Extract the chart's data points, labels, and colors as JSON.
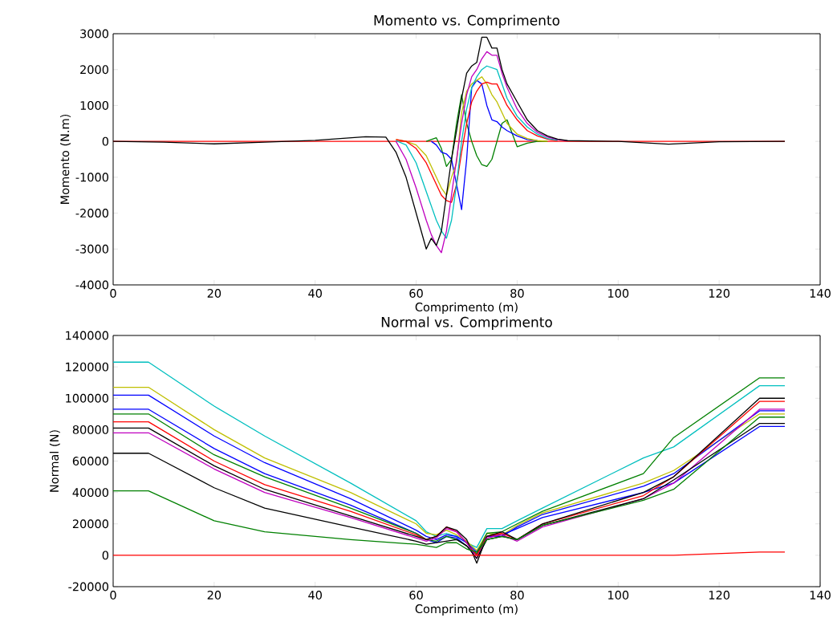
{
  "chart_data": [
    {
      "type": "line",
      "title": "Momento vs. Comprimento",
      "xlabel": "Comprimento (m)",
      "ylabel": "Momento (N.m)",
      "xlim": [
        0,
        140
      ],
      "ylim": [
        -4000,
        3000
      ],
      "xticks": [
        0,
        20,
        40,
        60,
        80,
        100,
        120,
        140
      ],
      "yticks": [
        -4000,
        -3000,
        -2000,
        -1000,
        0,
        1000,
        2000,
        3000
      ],
      "x": [
        0,
        10,
        20,
        30,
        40,
        50,
        54,
        56,
        58,
        60,
        62,
        63,
        64,
        65,
        66,
        67,
        68,
        69,
        70,
        71,
        72,
        73,
        74,
        75,
        76,
        77,
        78,
        80,
        82,
        84,
        86,
        88,
        90,
        100,
        110,
        120,
        133
      ],
      "series": [
        {
          "color": "#ff0000",
          "values": [
            0,
            0,
            0,
            0,
            0,
            0,
            0,
            0,
            0,
            0,
            0,
            0,
            0,
            0,
            0,
            0,
            0,
            0,
            0,
            0,
            0,
            0,
            0,
            0,
            0,
            0,
            0,
            0,
            0,
            0,
            0,
            0,
            0,
            0,
            0,
            0,
            0
          ]
        },
        {
          "color": "#008000",
          "values": [
            null,
            null,
            null,
            null,
            null,
            null,
            null,
            null,
            null,
            null,
            0,
            50,
            100,
            -200,
            -700,
            -500,
            500,
            1300,
            500,
            0,
            -400,
            -650,
            -700,
            -500,
            0,
            500,
            600,
            -150,
            -50,
            0,
            0,
            null,
            null,
            null,
            null,
            null,
            null
          ]
        },
        {
          "color": "#0000ff",
          "values": [
            null,
            null,
            null,
            null,
            null,
            null,
            null,
            null,
            null,
            null,
            null,
            0,
            -100,
            -300,
            -350,
            -500,
            -1200,
            -1900,
            -500,
            1500,
            1700,
            1600,
            1000,
            600,
            550,
            400,
            300,
            150,
            50,
            20,
            null,
            null,
            null,
            null,
            null,
            null,
            null
          ]
        },
        {
          "color": "#bfbf00",
          "values": [
            null,
            null,
            null,
            null,
            null,
            null,
            null,
            50,
            0,
            -100,
            -400,
            -700,
            -1000,
            -1300,
            -1500,
            -1000,
            -600,
            800,
            1400,
            1600,
            1700,
            1800,
            1600,
            1300,
            1100,
            800,
            500,
            200,
            80,
            20,
            0,
            null,
            null,
            null,
            null,
            null,
            null
          ]
        },
        {
          "color": "#ff0000",
          "values": [
            null,
            null,
            null,
            null,
            null,
            null,
            null,
            50,
            0,
            -200,
            -600,
            -900,
            -1200,
            -1500,
            -1650,
            -1700,
            -1200,
            -300,
            500,
            1100,
            1400,
            1600,
            1650,
            1600,
            1600,
            1300,
            1000,
            600,
            300,
            150,
            60,
            20,
            null,
            null,
            null,
            null,
            null
          ]
        },
        {
          "color": "#00bfbf",
          "values": [
            null,
            null,
            null,
            null,
            null,
            null,
            null,
            20,
            -100,
            -600,
            -1400,
            -1800,
            -2200,
            -2500,
            -2700,
            -2200,
            -1200,
            0,
            900,
            1500,
            1800,
            2000,
            2100,
            2050,
            2000,
            1600,
            1200,
            700,
            400,
            200,
            80,
            30,
            null,
            null,
            null,
            null,
            null
          ]
        },
        {
          "color": "#bf00bf",
          "values": [
            null,
            null,
            null,
            null,
            null,
            null,
            null,
            0,
            -500,
            -1300,
            -2200,
            -2600,
            -2900,
            -3100,
            -2500,
            -1500,
            -500,
            500,
            1300,
            1800,
            2000,
            2300,
            2500,
            2400,
            2400,
            1900,
            1500,
            900,
            500,
            250,
            120,
            50,
            10,
            null,
            null,
            null,
            null
          ]
        },
        {
          "color": "#000000",
          "values": [
            0,
            -20,
            -70,
            -20,
            30,
            130,
            120,
            -300,
            -1000,
            -2000,
            -3000,
            -2700,
            -2900,
            -2500,
            -1500,
            -500,
            300,
            1200,
            1900,
            2100,
            2200,
            2900,
            2900,
            2600,
            2600,
            2000,
            1600,
            1100,
            600,
            300,
            150,
            60,
            20,
            0,
            -80,
            -10,
            0
          ]
        }
      ]
    },
    {
      "type": "line",
      "title": "Normal vs. Comprimento",
      "xlabel": "Comprimento (m)",
      "ylabel": "Normal (N)",
      "xlim": [
        0,
        140
      ],
      "ylim": [
        -20000,
        140000
      ],
      "xticks": [
        0,
        20,
        40,
        60,
        80,
        100,
        120,
        140
      ],
      "yticks": [
        -20000,
        0,
        20000,
        40000,
        60000,
        80000,
        100000,
        120000,
        140000
      ],
      "x": [
        0,
        7,
        20,
        30,
        47,
        60,
        62,
        64,
        66,
        68,
        70,
        72,
        74,
        77,
        80,
        85,
        105,
        111,
        128,
        133
      ],
      "series": [
        {
          "color": "#00bfbf",
          "values": [
            123000,
            123000,
            95000,
            76000,
            46000,
            22000,
            15000,
            12000,
            14000,
            12000,
            8000,
            5000,
            17000,
            17000,
            22000,
            30000,
            62000,
            69000,
            108000,
            108000
          ]
        },
        {
          "color": "#bfbf00",
          "values": [
            107000,
            107000,
            80000,
            62000,
            40000,
            20000,
            14000,
            13000,
            16000,
            13000,
            9000,
            3000,
            14000,
            13000,
            19000,
            27000,
            46000,
            54000,
            90000,
            90000
          ]
        },
        {
          "color": "#0000ff",
          "values": [
            102000,
            102000,
            76000,
            59000,
            36000,
            16000,
            12000,
            10000,
            13000,
            12000,
            8000,
            2000,
            12000,
            12000,
            18000,
            26000,
            44000,
            52000,
            92000,
            92000
          ]
        },
        {
          "color": "#0000ff",
          "values": [
            93000,
            93000,
            68000,
            52000,
            32000,
            14000,
            10000,
            8000,
            12000,
            11000,
            6000,
            0,
            12000,
            13000,
            17000,
            24000,
            40000,
            46000,
            82000,
            82000
          ]
        },
        {
          "color": "#008000",
          "values": [
            90000,
            90000,
            64000,
            50000,
            30000,
            14000,
            10000,
            9000,
            12000,
            10000,
            6000,
            1000,
            14000,
            15000,
            20000,
            28000,
            52000,
            75000,
            113000,
            113000
          ]
        },
        {
          "color": "#ff0000",
          "values": [
            85000,
            85000,
            60000,
            45000,
            28000,
            13000,
            10000,
            12000,
            18000,
            15000,
            8000,
            0,
            12000,
            14000,
            10000,
            20000,
            38000,
            50000,
            98000,
            98000
          ]
        },
        {
          "color": "#000000",
          "values": [
            81000,
            81000,
            57000,
            42000,
            25000,
            12000,
            10000,
            12000,
            18000,
            16000,
            10000,
            -5000,
            12000,
            15000,
            10000,
            20000,
            40000,
            50000,
            100000,
            100000
          ]
        },
        {
          "color": "#bf00bf",
          "values": [
            78000,
            78000,
            55000,
            40000,
            24000,
            11000,
            9000,
            11000,
            17000,
            15000,
            8000,
            -2000,
            11000,
            13000,
            9000,
            18000,
            36000,
            46000,
            93000,
            93000
          ]
        },
        {
          "color": "#000000",
          "values": [
            65000,
            65000,
            43000,
            30000,
            18000,
            9000,
            7000,
            8000,
            9000,
            10000,
            6000,
            -2000,
            10000,
            12000,
            10000,
            19000,
            36000,
            48000,
            84000,
            84000
          ]
        },
        {
          "color": "#008000",
          "values": [
            41000,
            41000,
            22000,
            15000,
            10000,
            7000,
            6000,
            5000,
            8000,
            8000,
            4000,
            2000,
            10000,
            12000,
            10000,
            19000,
            35000,
            42000,
            88000,
            88000
          ]
        },
        {
          "color": "#ff0000",
          "values": [
            0,
            0,
            0,
            0,
            0,
            0,
            0,
            0,
            0,
            0,
            0,
            0,
            0,
            0,
            0,
            0,
            0,
            0,
            2000,
            2000
          ]
        }
      ]
    }
  ]
}
